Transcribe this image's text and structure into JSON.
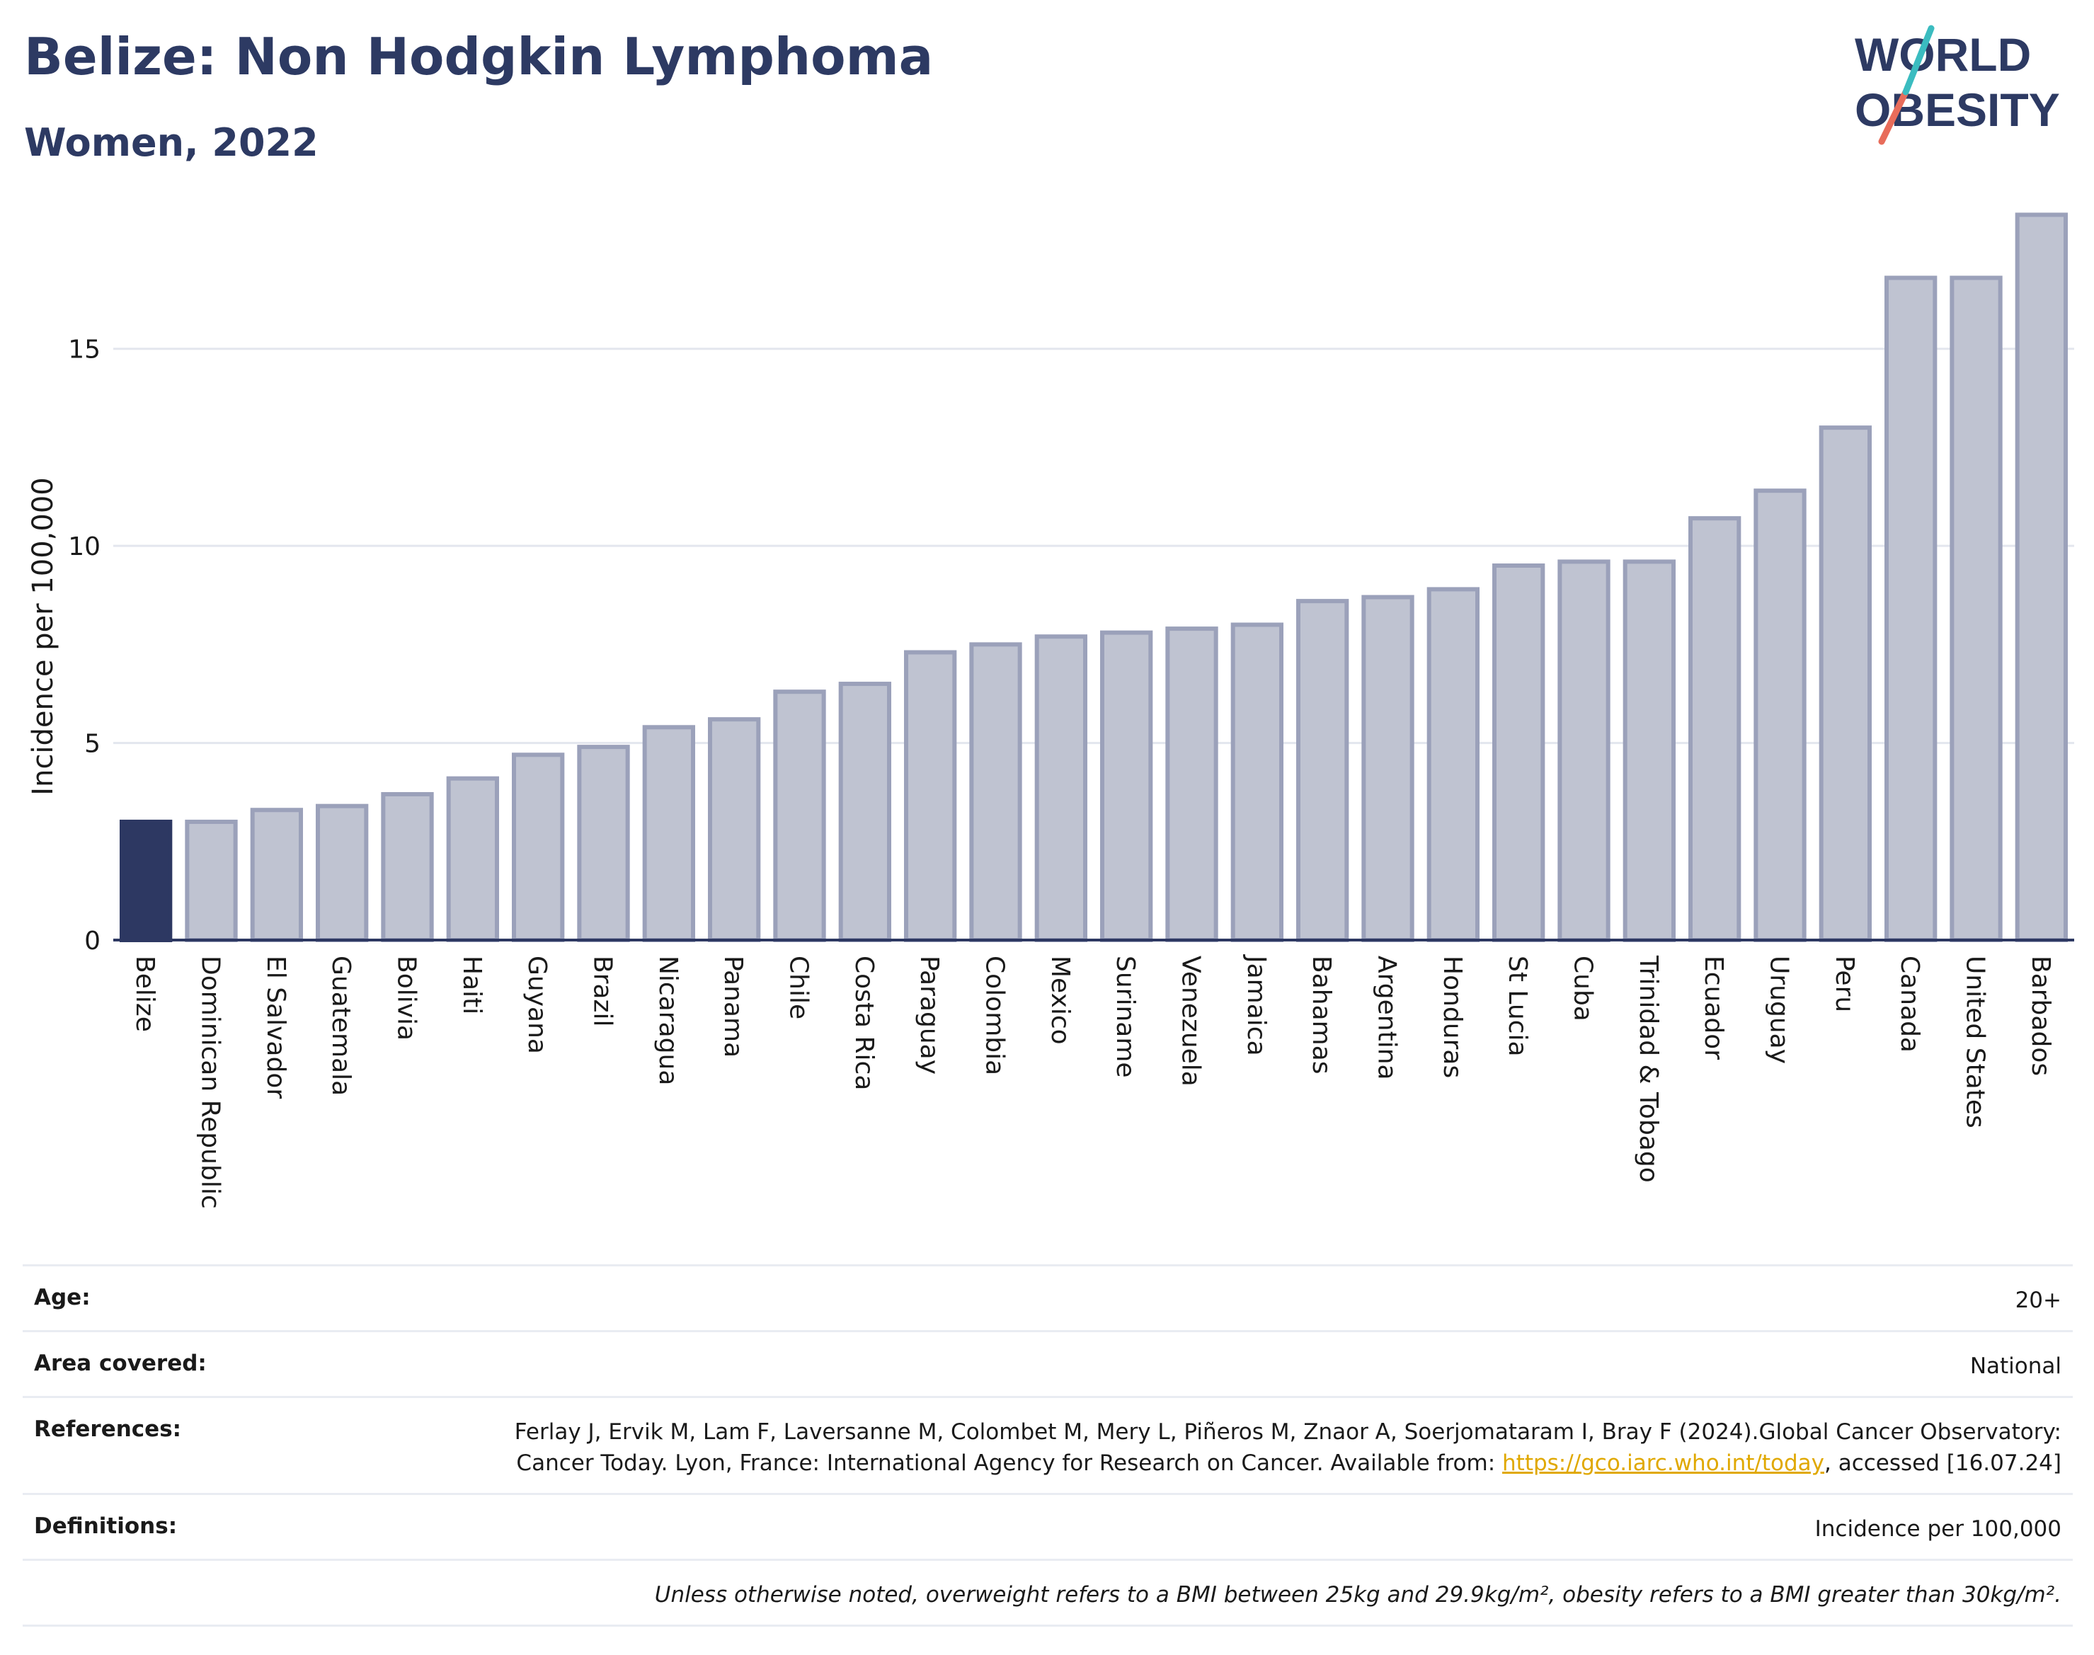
{
  "header": {
    "title": "Belize: Non Hodgkin Lymphoma",
    "subtitle": "Women, 2022",
    "logo_text_line1": "WORLD",
    "logo_text_line2": "OBESITY"
  },
  "chart_data": {
    "type": "bar",
    "ylabel": "Incidence per 100,000",
    "xlabel": "",
    "ylim": [
      0,
      19
    ],
    "yticks": [
      0,
      5,
      10,
      15
    ],
    "grid": true,
    "highlight_category": "Belize",
    "colors": {
      "highlight": "#2d3862",
      "bar_fill": "#bfc3d1",
      "bar_stroke": "#9ba1ba"
    },
    "categories": [
      "Belize",
      "Dominican Republic",
      "El Salvador",
      "Guatemala",
      "Bolivia",
      "Haiti",
      "Guyana",
      "Brazil",
      "Nicaragua",
      "Panama",
      "Chile",
      "Costa Rica",
      "Paraguay",
      "Colombia",
      "Mexico",
      "Suriname",
      "Venezuela",
      "Jamaica",
      "Bahamas",
      "Argentina",
      "Honduras",
      "St Lucia",
      "Cuba",
      "Trinidad & Tobago",
      "Ecuador",
      "Uruguay",
      "Peru",
      "Canada",
      "United States",
      "Barbados"
    ],
    "values": [
      3.0,
      3.0,
      3.3,
      3.4,
      3.7,
      4.1,
      4.7,
      4.9,
      5.4,
      5.6,
      6.3,
      6.5,
      7.3,
      7.5,
      7.7,
      7.8,
      7.9,
      8.0,
      8.6,
      8.7,
      8.9,
      9.5,
      9.6,
      9.6,
      10.7,
      11.4,
      13.0,
      16.8,
      16.8,
      18.4
    ]
  },
  "meta": {
    "age_label": "Age:",
    "age_value": "20+",
    "area_label": "Area covered:",
    "area_value": "National",
    "references_label": "References:",
    "references_text": "Ferlay J, Ervik M, Lam F, Laversanne M, Colombet M, Mery L, Piñeros M, Znaor A, Soerjomataram I, Bray F (2024).Global Cancer Observatory: Cancer Today. Lyon, France: International Agency for Research on Cancer. Available from: ",
    "references_link": "https://gco.iarc.who.int/today",
    "references_suffix": ", accessed [16.07.24]",
    "definitions_label": "Definitions:",
    "definitions_value": "Incidence per 100,000",
    "note": "Unless otherwise noted, overweight refers to a BMI between 25kg and 29.9kg/m², obesity refers to a BMI greater than 30kg/m²."
  }
}
